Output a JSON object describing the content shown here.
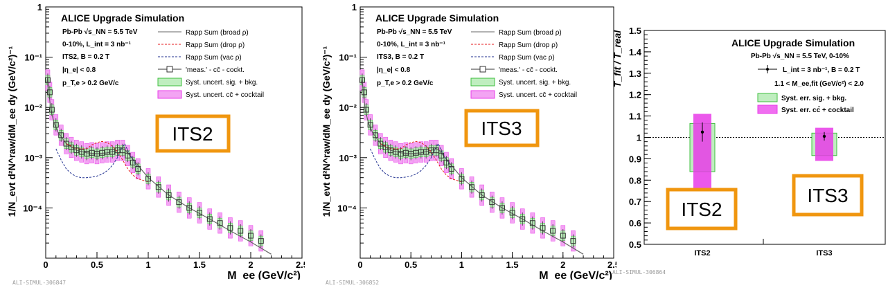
{
  "chart_data": [
    {
      "type": "line",
      "title": "ALICE Upgrade Simulation",
      "xlabel": "M_ee (GeV/c²)",
      "ylabel": "1/N_evt d²N^raw/dM_ee dy (GeV/c²)⁻¹",
      "xlim": [
        0,
        2.5
      ],
      "ylim_log10": [
        -5,
        0
      ],
      "x_ticks": [
        "0",
        "0.5",
        "1",
        "1.5",
        "2",
        "2.5"
      ],
      "y_ticks": [
        "10⁻⁴",
        "10⁻³",
        "10⁻²",
        "10⁻¹",
        "1"
      ],
      "y_tick_exponents": [
        -4,
        -3,
        -2,
        -1,
        0
      ],
      "info_lines": [
        "Pb-Pb √s_NN = 5.5 TeV",
        "0-10%, L_int = 3 nb⁻¹",
        "ITS2, B = 0.2 T",
        "|η_e| < 0.8",
        "p_T,e > 0.2 GeV/c"
      ],
      "legend": [
        "Rapp Sum (broad ρ)",
        "Rapp Sum (drop ρ)",
        "Rapp Sum (vac ρ)",
        "'meas.' - cc̄ - cockt.",
        "Syst. uncert. sig. + bkg.",
        "Syst. uncert. cc̄ + cocktail"
      ],
      "label_box": "ITS2",
      "footnote": "ALI-SIMUL-306847",
      "series": [
        {
          "name": "Rapp Sum (broad ρ)",
          "x": [
            0.01,
            0.02,
            0.03,
            0.05,
            0.08,
            0.12,
            0.2,
            0.3,
            0.4,
            0.5,
            0.6,
            0.7,
            0.75,
            0.78,
            0.82,
            0.9,
            1.0,
            1.2,
            1.4,
            1.6,
            1.8,
            2.0,
            2.2
          ],
          "y": [
            0.03,
            0.04,
            0.02,
            0.009,
            0.005,
            0.0032,
            0.0019,
            0.0014,
            0.00125,
            0.0012,
            0.00125,
            0.0014,
            0.0015,
            0.0014,
            0.0011,
            0.0007,
            0.0004,
            0.00018,
            0.0001,
            6e-05,
            3.5e-05,
            2.1e-05,
            1.2e-05
          ]
        },
        {
          "name": "Rapp Sum (drop ρ)",
          "x": [
            0.2,
            0.3,
            0.4,
            0.45,
            0.5,
            0.55,
            0.6,
            0.65,
            0.7,
            0.75,
            0.8,
            0.85,
            0.9,
            1.0
          ],
          "y": [
            0.0019,
            0.0015,
            0.0015,
            0.0018,
            0.002,
            0.0021,
            0.002,
            0.0017,
            0.0013,
            0.0009,
            0.0006,
            0.00045,
            0.00038,
            0.00033
          ]
        },
        {
          "name": "Rapp Sum (vac ρ)",
          "x": [
            0.1,
            0.15,
            0.2,
            0.25,
            0.3,
            0.35,
            0.4,
            0.45,
            0.5,
            0.55,
            0.6,
            0.65,
            0.7,
            0.74,
            0.77,
            0.8,
            0.85,
            0.9
          ],
          "y": [
            0.0015,
            0.0009,
            0.0006,
            0.00048,
            0.00042,
            0.0004,
            0.0004,
            0.00041,
            0.00043,
            0.00047,
            0.00055,
            0.0007,
            0.001,
            0.0015,
            0.0019,
            0.0014,
            0.0009,
            0.0006
          ]
        },
        {
          "name": "'meas.' - cc̄ - cockt.",
          "x": [
            0.02,
            0.04,
            0.06,
            0.1,
            0.15,
            0.2,
            0.25,
            0.3,
            0.35,
            0.4,
            0.45,
            0.5,
            0.55,
            0.6,
            0.65,
            0.7,
            0.75,
            0.8,
            0.85,
            0.9,
            1.0,
            1.1,
            1.2,
            1.3,
            1.4,
            1.5,
            1.6,
            1.7,
            1.8,
            1.9,
            2.0,
            2.1
          ],
          "y": [
            0.035,
            0.02,
            0.009,
            0.0045,
            0.0028,
            0.0019,
            0.0016,
            0.0014,
            0.0013,
            0.0012,
            0.00125,
            0.0012,
            0.00125,
            0.0013,
            0.0013,
            0.0014,
            0.0014,
            0.0011,
            0.0008,
            0.0006,
            0.00038,
            0.00026,
            0.00018,
            0.00013,
            0.0001,
            8e-05,
            6e-05,
            5e-05,
            4e-05,
            3.5e-05,
            2.8e-05,
            2.2e-05
          ]
        }
      ]
    },
    {
      "type": "line",
      "title": "ALICE Upgrade Simulation",
      "xlabel": "M_ee (GeV/c²)",
      "ylabel": "1/N_evt d²N^raw/dM_ee dy (GeV/c²)⁻¹",
      "xlim": [
        0,
        2.5
      ],
      "ylim_log10": [
        -5,
        0
      ],
      "x_ticks": [
        "0",
        "0.5",
        "1",
        "1.5",
        "2",
        "2.5"
      ],
      "y_ticks": [
        "10⁻⁴",
        "10⁻³",
        "10⁻²",
        "10⁻¹",
        "1"
      ],
      "y_tick_exponents": [
        -4,
        -3,
        -2,
        -1,
        0
      ],
      "info_lines": [
        "Pb-Pb √s_NN = 5.5 TeV",
        "0-10%, L_int = 3 nb⁻¹",
        "ITS3, B = 0.2 T",
        "|η_e| < 0.8",
        "p_T,e > 0.2 GeV/c"
      ],
      "legend": [
        "Rapp Sum (broad ρ)",
        "Rapp Sum (drop ρ)",
        "Rapp Sum (vac ρ)",
        "'meas.' - cc̄ - cockt.",
        "Syst. uncert. sig. + bkg.",
        "Syst. uncert. cc̄ + cocktail"
      ],
      "label_box": "ITS3",
      "footnote": "ALI-SIMUL-306852",
      "series": [
        {
          "name": "Rapp Sum (broad ρ)",
          "x": [
            0.01,
            0.02,
            0.03,
            0.05,
            0.08,
            0.12,
            0.2,
            0.3,
            0.4,
            0.5,
            0.6,
            0.7,
            0.75,
            0.78,
            0.82,
            0.9,
            1.0,
            1.2,
            1.4,
            1.6,
            1.8,
            2.0,
            2.2
          ],
          "y": [
            0.03,
            0.04,
            0.02,
            0.009,
            0.005,
            0.0032,
            0.0019,
            0.0014,
            0.00125,
            0.0012,
            0.00125,
            0.0014,
            0.0015,
            0.0014,
            0.0011,
            0.0007,
            0.0004,
            0.00018,
            0.0001,
            6e-05,
            3.5e-05,
            2.1e-05,
            1.2e-05
          ]
        },
        {
          "name": "Rapp Sum (drop ρ)",
          "x": [
            0.2,
            0.3,
            0.4,
            0.45,
            0.5,
            0.55,
            0.6,
            0.65,
            0.7,
            0.75,
            0.8,
            0.85,
            0.9,
            1.0
          ],
          "y": [
            0.0019,
            0.0015,
            0.0015,
            0.0018,
            0.002,
            0.0021,
            0.002,
            0.0017,
            0.0013,
            0.0009,
            0.0006,
            0.00045,
            0.00038,
            0.00033
          ]
        },
        {
          "name": "Rapp Sum (vac ρ)",
          "x": [
            0.1,
            0.15,
            0.2,
            0.25,
            0.3,
            0.35,
            0.4,
            0.45,
            0.5,
            0.55,
            0.6,
            0.65,
            0.7,
            0.74,
            0.77,
            0.8,
            0.85,
            0.9
          ],
          "y": [
            0.0015,
            0.0009,
            0.0006,
            0.00048,
            0.00042,
            0.0004,
            0.0004,
            0.00041,
            0.00043,
            0.00047,
            0.00055,
            0.0007,
            0.001,
            0.0015,
            0.0019,
            0.0014,
            0.0009,
            0.0006
          ]
        },
        {
          "name": "'meas.' - cc̄ - cockt.",
          "x": [
            0.02,
            0.04,
            0.06,
            0.1,
            0.15,
            0.2,
            0.25,
            0.3,
            0.35,
            0.4,
            0.45,
            0.5,
            0.55,
            0.6,
            0.65,
            0.7,
            0.75,
            0.8,
            0.85,
            0.9,
            1.0,
            1.1,
            1.2,
            1.3,
            1.4,
            1.5,
            1.6,
            1.7,
            1.8,
            1.9,
            2.0,
            2.1
          ],
          "y": [
            0.035,
            0.02,
            0.009,
            0.0045,
            0.0028,
            0.0019,
            0.0016,
            0.0014,
            0.0013,
            0.0012,
            0.00125,
            0.0012,
            0.00125,
            0.0013,
            0.0013,
            0.0014,
            0.0014,
            0.0011,
            0.0008,
            0.0006,
            0.00038,
            0.00026,
            0.00018,
            0.00013,
            0.0001,
            8e-05,
            6e-05,
            5e-05,
            4e-05,
            3.5e-05,
            2.8e-05,
            2.2e-05
          ]
        }
      ]
    },
    {
      "type": "scatter",
      "title": "ALICE Upgrade Simulation",
      "ylabel": "T_fit / T_real",
      "ylim": [
        0.5,
        1.5
      ],
      "y_ticks": [
        "0.5",
        "0.6",
        "0.7",
        "0.8",
        "0.9",
        "1",
        "1.1",
        "1.2",
        "1.3",
        "1.4",
        "1.5"
      ],
      "y_tick_values": [
        0.5,
        0.6,
        0.7,
        0.8,
        0.9,
        1.0,
        1.1,
        1.2,
        1.3,
        1.4,
        1.5
      ],
      "categories": [
        "ITS2",
        "ITS3"
      ],
      "reference_line": 1.0,
      "info_lines": [
        "Pb-Pb √s_NN = 5.5 TeV, 0-10%",
        "L_int = 3 nb⁻¹, B = 0.2 T",
        "1.1 < M_ee,fit (GeV/c²) < 2.0"
      ],
      "legend": [
        "Syst. err. sig. + bkg.",
        "Syst. err. cc̄ + cocktail"
      ],
      "points": [
        {
          "category": "ITS2",
          "value": 1.025,
          "stat_err": 0.045,
          "syst_sig_bkg": [
            0.84,
            1.065
          ],
          "syst_cc_cocktail": [
            0.755,
            1.11
          ]
        },
        {
          "category": "ITS3",
          "value": 1.005,
          "stat_err": 0.02,
          "syst_sig_bkg": [
            0.915,
            1.02
          ],
          "syst_cc_cocktail": [
            0.89,
            1.045
          ]
        }
      ],
      "label_boxes": [
        "ITS2",
        "ITS3"
      ],
      "footnote": "ALI-SIMUL-306864"
    }
  ],
  "colors": {
    "broad": "#666666",
    "drop": "#e41a1c",
    "vac": "#1f2f8f",
    "meas": "#333333",
    "green_band": "#3fbf3f",
    "magenta_band": "#e83be8",
    "orange_box": "#f0960f"
  }
}
